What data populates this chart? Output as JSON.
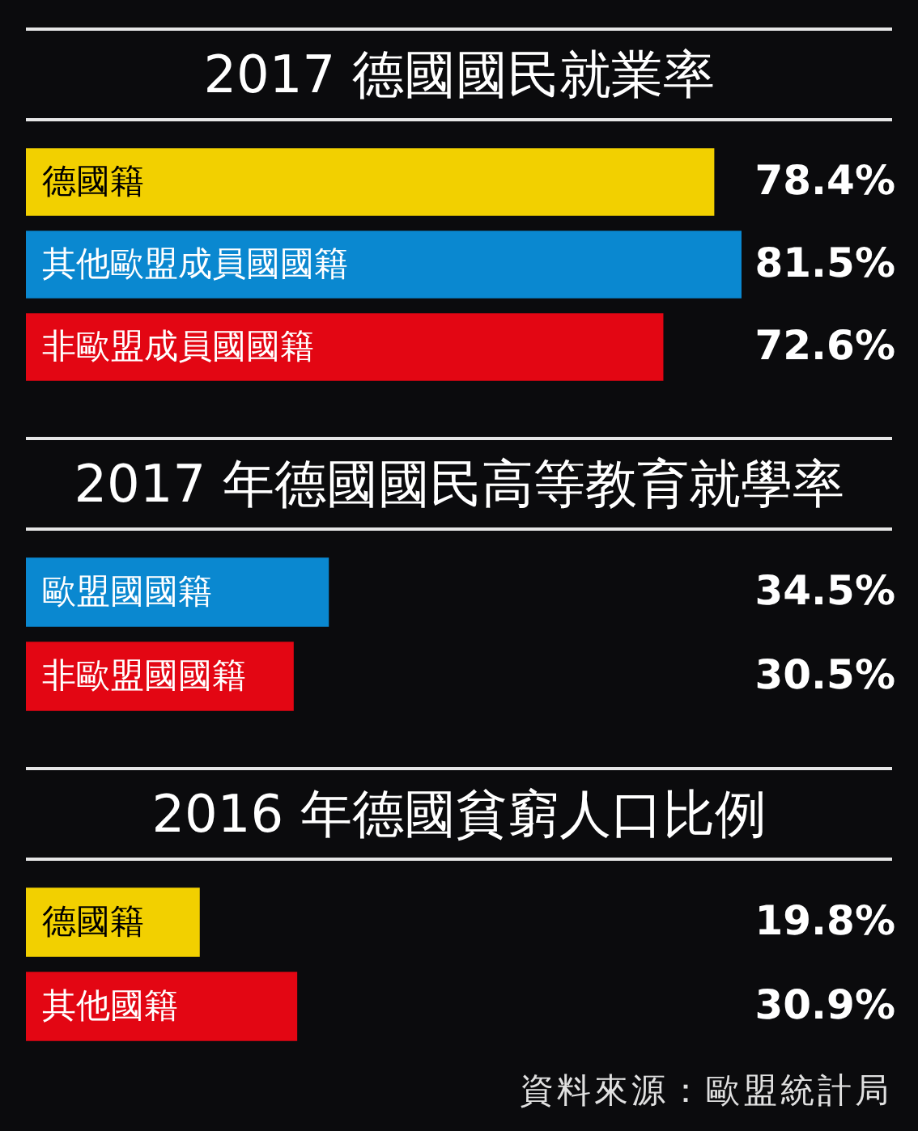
{
  "chart_data": [
    {
      "type": "bar",
      "orientation": "horizontal",
      "title": "2017 德國國民就業率",
      "categories": [
        "德國籍",
        "其他歐盟成員國國籍",
        "非歐盟成員國國籍"
      ],
      "values": [
        78.4,
        81.5,
        72.6
      ],
      "value_labels": [
        "78.4%",
        "81.5%",
        "72.6%"
      ],
      "colors": [
        "#f2d000",
        "#0a88d0",
        "#e30613"
      ]
    },
    {
      "type": "bar",
      "orientation": "horizontal",
      "title": "2017 年德國國民高等教育就學率",
      "categories": [
        "歐盟國國籍",
        "非歐盟國國籍"
      ],
      "values": [
        34.5,
        30.5
      ],
      "value_labels": [
        "34.5%",
        "30.5%"
      ],
      "colors": [
        "#0a88d0",
        "#e30613"
      ]
    },
    {
      "type": "bar",
      "orientation": "horizontal",
      "title": "2016 年德國貧窮人口比例",
      "categories": [
        "德國籍",
        "其他國籍"
      ],
      "values": [
        19.8,
        30.9
      ],
      "value_labels": [
        "19.8%",
        "30.9%"
      ],
      "colors": [
        "#f2d000",
        "#e30613"
      ],
      "annotations": [
        "資料來源：歐盟統計局"
      ]
    }
  ]
}
